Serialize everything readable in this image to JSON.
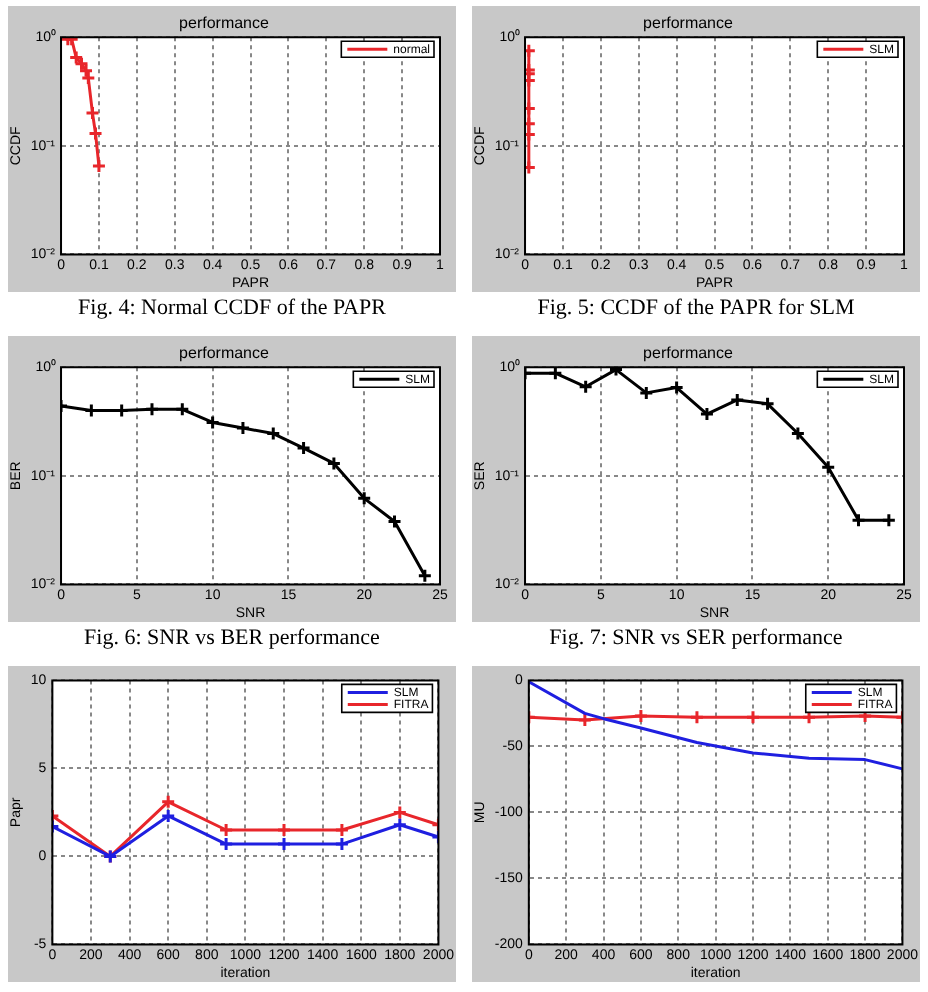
{
  "chart_data": [
    {
      "type": "line",
      "title": "performance",
      "xlabel": "PAPR",
      "ylabel": "CCDF",
      "annotations": [
        "Fig. 4: Normal CCDF of the PAPR"
      ],
      "log": "y",
      "grid": true,
      "legend": "top right",
      "marker": "cross",
      "xlim": [
        0,
        1
      ],
      "xticks": [
        0,
        0.1,
        0.2,
        0.3,
        0.4,
        0.5,
        0.6,
        0.7,
        0.8,
        0.9,
        1
      ],
      "ylim": [
        0.01,
        1
      ],
      "yticks": [
        {
          "value": 0.01,
          "label": "10⁻²"
        },
        {
          "value": 0.1,
          "label": "10⁻¹"
        },
        {
          "value": 1,
          "label": "10⁰"
        }
      ],
      "series": [
        {
          "name": "normal",
          "color": "#e8262b",
          "x": [
            0.018,
            0.028,
            0.04,
            0.054,
            0.066,
            0.072,
            0.083,
            0.091,
            0.1
          ],
          "values": [
            0.96,
            0.96,
            0.65,
            0.57,
            0.49,
            0.42,
            0.2,
            0.13,
            0.065
          ]
        }
      ]
    },
    {
      "type": "line",
      "title": "performance",
      "xlabel": "PAPR",
      "ylabel": "CCDF",
      "annotations": [
        "Fig. 5: CCDF of the PAPR for SLM"
      ],
      "log": "y",
      "grid": true,
      "legend": "top right",
      "marker": "cross",
      "xlim": [
        0,
        1
      ],
      "xticks": [
        0,
        0.1,
        0.2,
        0.3,
        0.4,
        0.5,
        0.6,
        0.7,
        0.8,
        0.9,
        1
      ],
      "ylim": [
        0.01,
        1
      ],
      "yticks": [
        {
          "value": 0.01,
          "label": "10⁻²"
        },
        {
          "value": 0.1,
          "label": "10⁻¹"
        },
        {
          "value": 1,
          "label": "10⁰"
        }
      ],
      "series": [
        {
          "name": "SLM",
          "color": "#e8262b",
          "x": [
            0.01,
            0.01,
            0.01,
            0.01,
            0.01,
            0.01,
            0.01,
            0.01
          ],
          "values": [
            0.75,
            0.5,
            0.46,
            0.4,
            0.22,
            0.16,
            0.127,
            0.063
          ]
        }
      ]
    },
    {
      "type": "line",
      "title": "performance",
      "xlabel": "SNR",
      "ylabel": "BER",
      "annotations": [
        "Fig. 6: SNR vs BER performance"
      ],
      "log": "y",
      "grid": true,
      "legend": "top right",
      "marker": "cross",
      "xlim": [
        0,
        25
      ],
      "xticks": [
        0,
        5,
        10,
        15,
        20,
        25
      ],
      "ylim": [
        0.01,
        1
      ],
      "yticks": [
        {
          "value": 0.01,
          "label": "10⁻²"
        },
        {
          "value": 0.1,
          "label": "10⁻¹"
        },
        {
          "value": 1,
          "label": "10⁰"
        }
      ],
      "series": [
        {
          "name": "SLM",
          "color": "#000000",
          "x": [
            0,
            2,
            4,
            6,
            8,
            10,
            12,
            14,
            16,
            18,
            20,
            22,
            24
          ],
          "values": [
            0.44,
            0.4,
            0.4,
            0.41,
            0.41,
            0.31,
            0.275,
            0.245,
            0.18,
            0.13,
            0.062,
            0.038,
            0.012
          ]
        }
      ]
    },
    {
      "type": "line",
      "title": "performance",
      "xlabel": "SNR",
      "ylabel": "SER",
      "annotations": [
        "Fig. 7: SNR vs SER performance"
      ],
      "log": "y",
      "grid": true,
      "legend": "top right",
      "marker": "cross",
      "xlim": [
        0,
        25
      ],
      "xticks": [
        0,
        5,
        10,
        15,
        20,
        25
      ],
      "ylim": [
        0.01,
        1
      ],
      "yticks": [
        {
          "value": 0.01,
          "label": "10⁻²"
        },
        {
          "value": 0.1,
          "label": "10⁻¹"
        },
        {
          "value": 1,
          "label": "10⁰"
        }
      ],
      "series": [
        {
          "name": "SLM",
          "color": "#000000",
          "x": [
            0,
            2,
            4,
            6,
            8,
            10,
            12,
            14,
            16,
            18,
            20,
            22,
            24
          ],
          "values": [
            0.88,
            0.88,
            0.66,
            0.95,
            0.58,
            0.65,
            0.37,
            0.5,
            0.46,
            0.245,
            0.12,
            0.039,
            0.039
          ]
        }
      ]
    },
    {
      "type": "line",
      "xlabel": "iteration",
      "ylabel": "Papr",
      "grid": true,
      "legend": "top right",
      "marker": "cross",
      "xlim": [
        0,
        2000
      ],
      "xticks": [
        0,
        200,
        400,
        600,
        800,
        1000,
        1200,
        1400,
        1600,
        1800,
        2000
      ],
      "ylim": [
        -5,
        10
      ],
      "yticks": [
        -5,
        0,
        5,
        10
      ],
      "series": [
        {
          "name": "SLM",
          "color": "#1f1fe0",
          "x": [
            0,
            300,
            600,
            900,
            1200,
            1500,
            1800,
            2000
          ],
          "values": [
            1.7,
            0,
            2.3,
            0.7,
            0.7,
            0.7,
            1.8,
            1.1
          ]
        },
        {
          "name": "FITRA",
          "color": "#e8262b",
          "x": [
            0,
            300,
            600,
            900,
            1200,
            1500,
            1800,
            2000
          ],
          "values": [
            2.3,
            0,
            3.1,
            1.5,
            1.5,
            1.5,
            2.5,
            1.8
          ]
        }
      ]
    },
    {
      "type": "line",
      "xlabel": "iteration",
      "ylabel": "MU",
      "grid": true,
      "legend": "top right",
      "xlim": [
        0,
        2000
      ],
      "xticks": [
        0,
        200,
        400,
        600,
        800,
        1000,
        1200,
        1400,
        1600,
        1800,
        2000
      ],
      "ylim": [
        -200,
        0
      ],
      "yticks": [
        -200,
        -150,
        -100,
        -50,
        0
      ],
      "series": [
        {
          "name": "SLM",
          "color": "#1f1fe0",
          "marker": "none",
          "x": [
            0,
            300,
            400,
            600,
            900,
            1200,
            1500,
            1800,
            2000
          ],
          "values": [
            -1,
            -25,
            -29,
            -36,
            -47,
            -55,
            -59,
            -60,
            -67
          ]
        },
        {
          "name": "FITRA",
          "color": "#e8262b",
          "marker": "cross",
          "x": [
            0,
            300,
            600,
            900,
            1200,
            1500,
            1800,
            2000
          ],
          "values": [
            -28,
            -30,
            -27,
            -28,
            -28,
            -28,
            -27,
            -28
          ]
        }
      ]
    }
  ]
}
